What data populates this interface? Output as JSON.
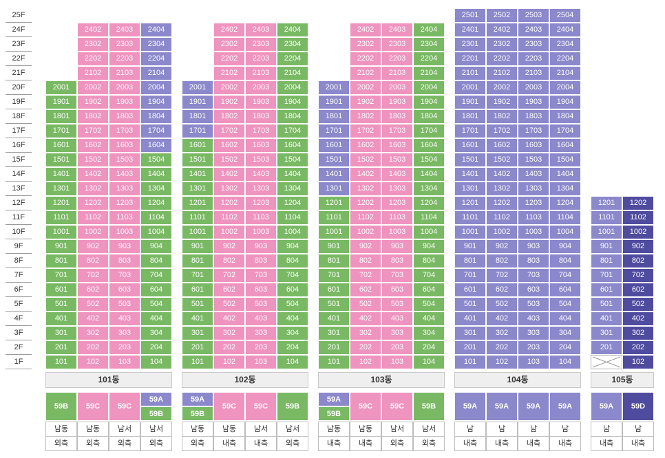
{
  "colors": {
    "green": "#79b963",
    "pink": "#ef93bf",
    "purple": "#8b88cb",
    "dark": "#4f4b9f"
  },
  "floors": [
    "25F",
    "24F",
    "23F",
    "22F",
    "21F",
    "20F",
    "19F",
    "18F",
    "17F",
    "16F",
    "15F",
    "14F",
    "13F",
    "12F",
    "11F",
    "10F",
    "9F",
    "8F",
    "7F",
    "6F",
    "5F",
    "4F",
    "3F",
    "2F",
    "1F"
  ],
  "buildings": [
    {
      "name": "101동",
      "columns": [
        {
          "line": "01",
          "top": 20,
          "colors": [
            "green"
          ]
        },
        {
          "line": "02",
          "top": 24,
          "colors": [
            "pink"
          ]
        },
        {
          "line": "03",
          "top": 24,
          "colors": [
            "pink"
          ]
        },
        {
          "line": "04",
          "top": 24,
          "colors": [
            "green"
          ],
          "upper": {
            "from": 16,
            "color": "purple"
          }
        }
      ],
      "types": [
        [
          {
            "label": "59B",
            "color": "green"
          }
        ],
        [
          {
            "label": "59C",
            "color": "pink"
          }
        ],
        [
          {
            "label": "59C",
            "color": "pink"
          }
        ],
        [
          {
            "label": "59A",
            "color": "purple"
          },
          {
            "label": "59B",
            "color": "green"
          }
        ]
      ],
      "dirs": [
        "남동",
        "남동",
        "남서",
        "남서"
      ],
      "sides": [
        "외측",
        "외측",
        "외측",
        "외측"
      ]
    },
    {
      "name": "102동",
      "columns": [
        {
          "line": "01",
          "top": 20,
          "colors": [
            "green"
          ],
          "upper": {
            "from": 17,
            "color": "purple"
          }
        },
        {
          "line": "02",
          "top": 24,
          "colors": [
            "pink"
          ]
        },
        {
          "line": "03",
          "top": 24,
          "colors": [
            "pink"
          ]
        },
        {
          "line": "04",
          "top": 24,
          "colors": [
            "green"
          ]
        }
      ],
      "types": [
        [
          {
            "label": "59A",
            "color": "purple"
          },
          {
            "label": "59B",
            "color": "green"
          }
        ],
        [
          {
            "label": "59C",
            "color": "pink"
          }
        ],
        [
          {
            "label": "59C",
            "color": "pink"
          }
        ],
        [
          {
            "label": "59B",
            "color": "green"
          }
        ]
      ],
      "dirs": [
        "남동",
        "남동",
        "남서",
        "남서"
      ],
      "sides": [
        "외측",
        "내측",
        "내측",
        "외측"
      ]
    },
    {
      "name": "103동",
      "columns": [
        {
          "line": "01",
          "top": 20,
          "colors": [
            "green"
          ],
          "upper": {
            "from": 13,
            "color": "purple"
          }
        },
        {
          "line": "02",
          "top": 24,
          "colors": [
            "pink"
          ]
        },
        {
          "line": "03",
          "top": 24,
          "colors": [
            "pink"
          ]
        },
        {
          "line": "04",
          "top": 24,
          "colors": [
            "green"
          ]
        }
      ],
      "types": [
        [
          {
            "label": "59A",
            "color": "purple"
          },
          {
            "label": "59B",
            "color": "green"
          }
        ],
        [
          {
            "label": "59C",
            "color": "pink"
          }
        ],
        [
          {
            "label": "59C",
            "color": "pink"
          }
        ],
        [
          {
            "label": "59B",
            "color": "green"
          }
        ]
      ],
      "dirs": [
        "남동",
        "남동",
        "남서",
        "남서"
      ],
      "sides": [
        "내측",
        "내측",
        "외측",
        "외측"
      ]
    },
    {
      "name": "104동",
      "columns": [
        {
          "line": "01",
          "top": 25,
          "colors": [
            "purple"
          ]
        },
        {
          "line": "02",
          "top": 25,
          "colors": [
            "purple"
          ]
        },
        {
          "line": "03",
          "top": 25,
          "colors": [
            "purple"
          ]
        },
        {
          "line": "04",
          "top": 25,
          "colors": [
            "purple"
          ]
        }
      ],
      "types": [
        [
          {
            "label": "59A",
            "color": "purple"
          }
        ],
        [
          {
            "label": "59A",
            "color": "purple"
          }
        ],
        [
          {
            "label": "59A",
            "color": "purple"
          }
        ],
        [
          {
            "label": "59A",
            "color": "purple"
          }
        ]
      ],
      "dirs": [
        "남",
        "남",
        "남",
        "남"
      ],
      "sides": [
        "내측",
        "내측",
        "내측",
        "내측"
      ]
    },
    {
      "name": "105동",
      "columns": [
        {
          "line": "01",
          "top": 12,
          "colors": [
            "purple"
          ],
          "empty_floor1": true
        },
        {
          "line": "02",
          "top": 12,
          "colors": [
            "dark"
          ]
        }
      ],
      "types": [
        [
          {
            "label": "59A",
            "color": "purple"
          }
        ],
        [
          {
            "label": "59D",
            "color": "dark"
          }
        ]
      ],
      "dirs": [
        "남",
        "남"
      ],
      "sides": [
        "내측",
        "내측"
      ]
    }
  ]
}
